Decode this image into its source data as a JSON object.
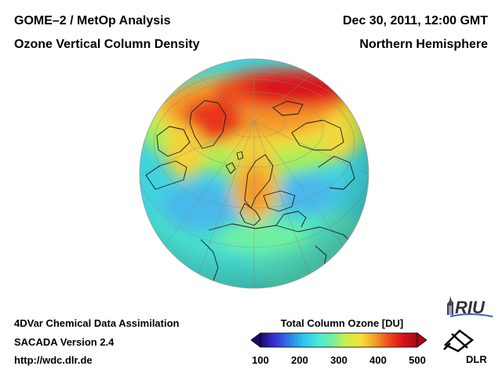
{
  "header": {
    "title_line1": "GOME–2 / MetOp Analysis",
    "title_line2": "Ozone Vertical Column Density",
    "date": "Dec 30, 2011, 12:00 GMT",
    "region": "Northern Hemisphere"
  },
  "footer": {
    "line1": "4DVar Chemical Data Assimilation",
    "line2": "SACADA Version 2.4",
    "line3": "http://wdc.dlr.de"
  },
  "colorbar": {
    "title": "Total Column Ozone [DU]",
    "ticks": [
      "100",
      "200",
      "300",
      "400",
      "500"
    ],
    "range": [
      100,
      500
    ],
    "colors": [
      "#1a0a6e",
      "#3a2fd6",
      "#2f7be8",
      "#2cc4ee",
      "#47e8d8",
      "#6ff0a0",
      "#c8f04a",
      "#f6e03a",
      "#f5a32a",
      "#ee4a1e",
      "#d8101a",
      "#a8081a"
    ]
  },
  "logos": {
    "riu": "RIU",
    "dlr": "DLR"
  },
  "map": {
    "projection": "orthographic",
    "center": "Northern Hemisphere"
  }
}
